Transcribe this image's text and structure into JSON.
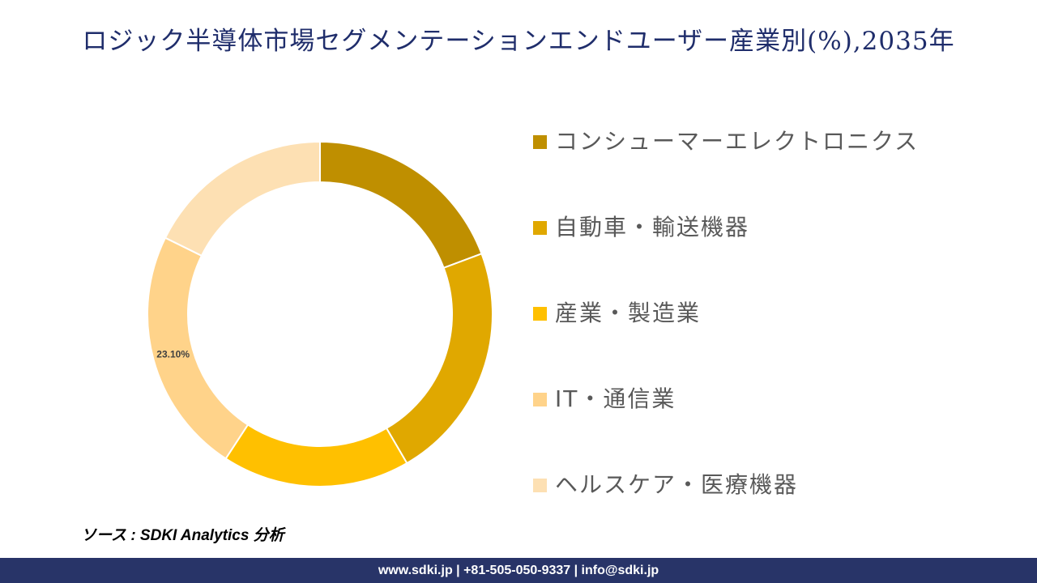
{
  "title": "ロジック半導体市場セグメンテーションエンドユーザー産業別(%),2035年",
  "chart_data": {
    "type": "pie",
    "categories": [
      "コンシューマーエレクトロニクス",
      "自動車・輸送機器",
      "産業・製造業",
      "IT・通信業",
      "ヘルスケア・医療機器"
    ],
    "values": [
      19.3,
      22.3,
      17.6,
      23.1,
      17.7
    ],
    "data_labels": [
      "",
      "",
      "",
      "23.10%",
      ""
    ],
    "colors": [
      "#bf8f00",
      "#e0a800",
      "#ffc000",
      "#ffd38a",
      "#fde0b3"
    ],
    "legend_position": "right"
  },
  "source": "ソース : SDKI Analytics 分析",
  "footer": "www.sdki.jp | +81-505-050-9337 | info@sdki.jp"
}
